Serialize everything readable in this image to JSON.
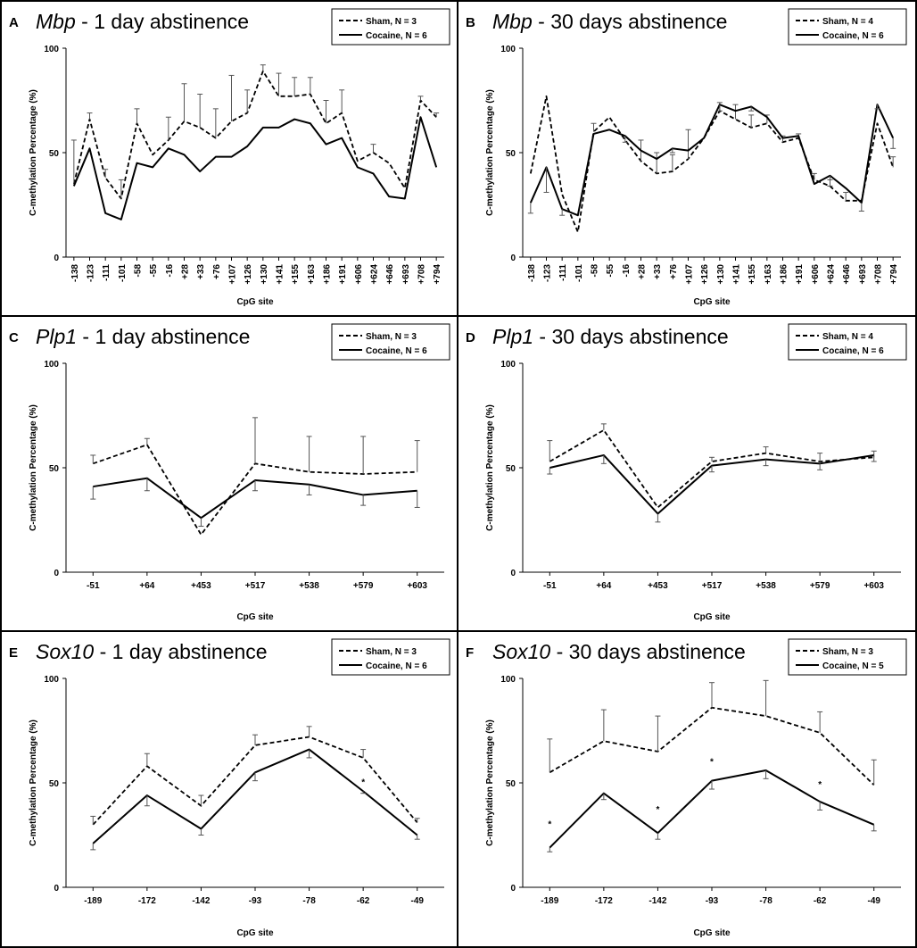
{
  "chart_data": [
    {
      "type": "line",
      "panel_label": "A",
      "title_gene": "Mbp",
      "title_rest": " - 1 day abstinence",
      "xlabel": "CpG site",
      "ylabel": "C-methylation Percentage (%)",
      "ylim": [
        0,
        100
      ],
      "yticks": [
        "0",
        "50",
        "100"
      ],
      "legend_position": "top-right",
      "categories": [
        "-138",
        "-123",
        "-111",
        "-101",
        "-58",
        "-55",
        "-16",
        "+28",
        "+33",
        "+76",
        "+107",
        "+126",
        "+130",
        "+141",
        "+155",
        "+163",
        "+186",
        "+191",
        "+606",
        "+624",
        "+646",
        "+693",
        "+708",
        "+794"
      ],
      "series": [
        {
          "name": "Sham, N = 3",
          "style": "dashed",
          "values": [
            35,
            66,
            38,
            28,
            64,
            49,
            56,
            65,
            62,
            57,
            65,
            69,
            89,
            77,
            77,
            78,
            64,
            69,
            46,
            50,
            45,
            33,
            75,
            67
          ],
          "errors": [
            21,
            3,
            4,
            9,
            7,
            0,
            11,
            18,
            16,
            14,
            22,
            11,
            3,
            11,
            9,
            8,
            11,
            11,
            0,
            4,
            0,
            0,
            2,
            2
          ]
        },
        {
          "name": "Cocaine, N = 6",
          "style": "solid",
          "values": [
            34,
            52,
            21,
            18,
            45,
            43,
            52,
            49,
            41,
            48,
            48,
            53,
            62,
            62,
            66,
            64,
            54,
            57,
            43,
            40,
            29,
            28,
            67,
            43
          ],
          "errors": [
            0,
            0,
            0,
            0,
            0,
            0,
            0,
            0,
            0,
            0,
            0,
            0,
            0,
            0,
            0,
            0,
            0,
            0,
            0,
            0,
            0,
            0,
            0,
            0
          ]
        }
      ],
      "annotations": []
    },
    {
      "type": "line",
      "panel_label": "B",
      "title_gene": "Mbp",
      "title_rest": " - 30 days abstinence",
      "xlabel": "CpG site",
      "ylabel": "C-methylation Percentage (%)",
      "ylim": [
        0,
        100
      ],
      "yticks": [
        "0",
        "50",
        "100"
      ],
      "legend_position": "top-right",
      "categories": [
        "-138",
        "-123",
        "-111",
        "-101",
        "-58",
        "-55",
        "-16",
        "+28",
        "+33",
        "+76",
        "+107",
        "+126",
        "+130",
        "+141",
        "+155",
        "+163",
        "+186",
        "+191",
        "+606",
        "+624",
        "+646",
        "+693",
        "+708",
        "+794"
      ],
      "series": [
        {
          "name": "Sham, N = 4",
          "style": "dashed",
          "values": [
            40,
            77,
            30,
            12,
            60,
            67,
            56,
            46,
            40,
            41,
            47,
            57,
            70,
            66,
            62,
            64,
            55,
            57,
            37,
            34,
            27,
            27,
            64,
            43
          ],
          "errors": [
            0,
            0,
            0,
            0,
            4,
            0,
            0,
            10,
            10,
            8,
            14,
            0,
            4,
            7,
            6,
            4,
            3,
            2,
            3,
            3,
            4,
            0,
            0,
            5
          ]
        },
        {
          "name": "Cocaine, N = 6",
          "style": "solid",
          "values": [
            26,
            43,
            23,
            20,
            59,
            61,
            58,
            51,
            47,
            52,
            51,
            57,
            73,
            70,
            72,
            67,
            57,
            58,
            35,
            39,
            33,
            26,
            73,
            57
          ],
          "errors": [
            5,
            12,
            3,
            0,
            0,
            0,
            3,
            0,
            0,
            2,
            0,
            0,
            3,
            0,
            2,
            0,
            0,
            0,
            0,
            5,
            0,
            4,
            2,
            5
          ]
        }
      ],
      "annotations": []
    },
    {
      "type": "line",
      "panel_label": "C",
      "title_gene": "Plp1",
      "title_rest": " - 1 day abstinence",
      "xlabel": "CpG site",
      "ylabel": "C-methylation Percentage (%)",
      "ylim": [
        0,
        100
      ],
      "yticks": [
        "0",
        "50",
        "100"
      ],
      "legend_position": "top-right",
      "categories": [
        "-51",
        "+64",
        "+453",
        "+517",
        "+538",
        "+579",
        "+603"
      ],
      "series": [
        {
          "name": "Sham, N = 3",
          "style": "dashed",
          "values": [
            52,
            61,
            18,
            52,
            48,
            47,
            48
          ],
          "errors": [
            4,
            3,
            0,
            22,
            17,
            18,
            15
          ]
        },
        {
          "name": "Cocaine, N = 6",
          "style": "solid",
          "values": [
            41,
            45,
            26,
            44,
            42,
            37,
            39
          ],
          "errors": [
            6,
            6,
            4,
            5,
            5,
            5,
            8
          ]
        }
      ],
      "annotations": []
    },
    {
      "type": "line",
      "panel_label": "D",
      "title_gene": "Plp1",
      "title_rest": " - 30 days abstinence",
      "xlabel": "CpG site",
      "ylabel": "C-methylation Percentage (%)",
      "ylim": [
        0,
        100
      ],
      "yticks": [
        "0",
        "50",
        "100"
      ],
      "legend_position": "top-right",
      "categories": [
        "-51",
        "+64",
        "+453",
        "+517",
        "+538",
        "+579",
        "+603"
      ],
      "series": [
        {
          "name": "Sham, N = 4",
          "style": "dashed",
          "values": [
            53,
            68,
            31,
            53,
            57,
            53,
            55
          ],
          "errors": [
            10,
            3,
            0,
            2,
            3,
            4,
            3
          ]
        },
        {
          "name": "Cocaine, N = 6",
          "style": "solid",
          "values": [
            50,
            56,
            28,
            51,
            54,
            52,
            56
          ],
          "errors": [
            3,
            4,
            4,
            3,
            3,
            3,
            3
          ]
        }
      ],
      "annotations": []
    },
    {
      "type": "line",
      "panel_label": "E",
      "title_gene": "Sox10",
      "title_rest": " - 1 day abstinence",
      "xlabel": "CpG site",
      "ylabel": "C-methylation Percentage (%)",
      "ylim": [
        0,
        100
      ],
      "yticks": [
        "0",
        "50",
        "100"
      ],
      "legend_position": "top-right",
      "categories": [
        "-189",
        "-172",
        "-142",
        "-93",
        "-78",
        "-62",
        "-49"
      ],
      "series": [
        {
          "name": "Sham, N = 3",
          "style": "dashed",
          "values": [
            30,
            58,
            39,
            68,
            72,
            62,
            31
          ],
          "errors": [
            4,
            6,
            5,
            5,
            5,
            4,
            2
          ]
        },
        {
          "name": "Cocaine, N = 6",
          "style": "solid",
          "values": [
            21,
            44,
            28,
            55,
            66,
            46,
            25
          ],
          "errors": [
            3,
            5,
            3,
            4,
            4,
            1,
            2
          ]
        }
      ],
      "annotations": [
        {
          "text": "*",
          "category": "-62",
          "value": 51
        }
      ]
    },
    {
      "type": "line",
      "panel_label": "F",
      "title_gene": "Sox10",
      "title_rest": " - 30 days abstinence",
      "xlabel": "CpG site",
      "ylabel": "C-methylation Percentage (%)",
      "ylim": [
        0,
        100
      ],
      "yticks": [
        "0",
        "50",
        "100"
      ],
      "legend_position": "top-right",
      "categories": [
        "-189",
        "-172",
        "-142",
        "-93",
        "-78",
        "-62",
        "-49"
      ],
      "series": [
        {
          "name": "Sham, N = 3",
          "style": "dashed",
          "values": [
            55,
            70,
            65,
            86,
            82,
            74,
            49
          ],
          "errors": [
            16,
            15,
            17,
            12,
            17,
            10,
            12
          ]
        },
        {
          "name": "Cocaine, N = 5",
          "style": "solid",
          "values": [
            19,
            45,
            26,
            51,
            56,
            41,
            30
          ],
          "errors": [
            2,
            3,
            3,
            4,
            4,
            4,
            3
          ]
        }
      ],
      "annotations": [
        {
          "text": "*",
          "category": "-189",
          "value": 31
        },
        {
          "text": "*",
          "category": "-142",
          "value": 38
        },
        {
          "text": "*",
          "category": "-93",
          "value": 61
        },
        {
          "text": "*",
          "category": "-62",
          "value": 50
        }
      ]
    }
  ]
}
